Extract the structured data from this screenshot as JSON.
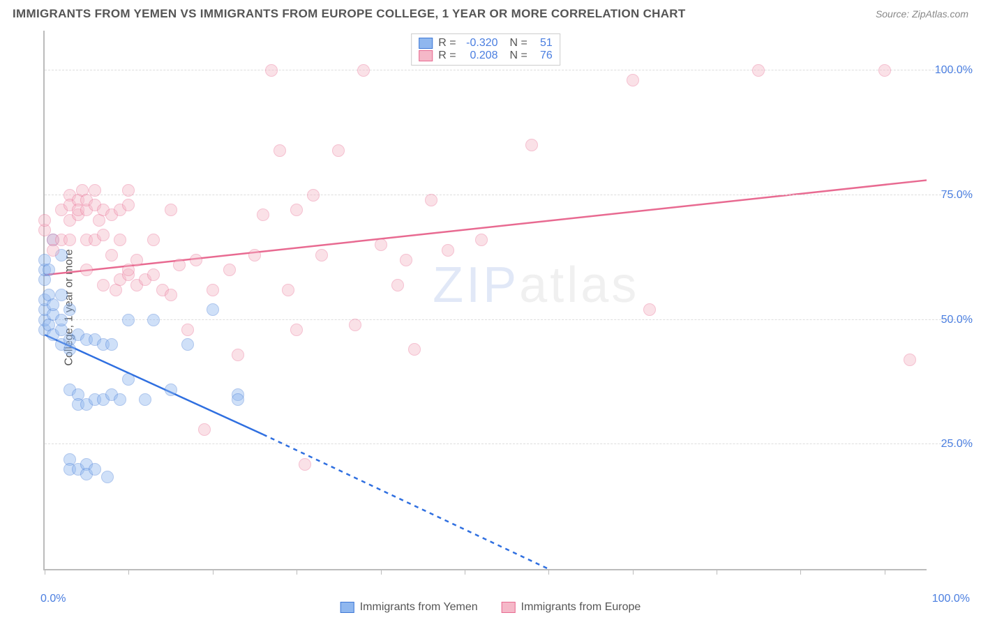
{
  "title": "IMMIGRANTS FROM YEMEN VS IMMIGRANTS FROM EUROPE COLLEGE, 1 YEAR OR MORE CORRELATION CHART",
  "source_label": "Source: ",
  "source_site": "ZipAtlas.com",
  "ylabel": "College, 1 year or more",
  "watermark_a": "ZIP",
  "watermark_b": "atlas",
  "chart": {
    "type": "scatter-with-regression",
    "background_color": "#ffffff",
    "axis_color": "#bbbbbb",
    "grid_color": "#dddddd",
    "tick_label_color": "#4a7ee0",
    "xlim": [
      0,
      105
    ],
    "ylim": [
      0,
      108
    ],
    "xticks": [
      0,
      10,
      20,
      30,
      40,
      50,
      60,
      70,
      80,
      90,
      100
    ],
    "x_labels": [
      {
        "v": 0,
        "t": "0.0%"
      },
      {
        "v": 100,
        "t": "100.0%"
      }
    ],
    "yticks": [
      {
        "v": 25,
        "t": "25.0%"
      },
      {
        "v": 50,
        "t": "50.0%"
      },
      {
        "v": 75,
        "t": "75.0%"
      },
      {
        "v": 100,
        "t": "100.0%"
      }
    ],
    "point_radius": 9,
    "point_opacity": 0.42,
    "series": [
      {
        "name": "Immigrants from Yemen",
        "color_fill": "#8fb7ef",
        "color_stroke": "#3f78d6",
        "line_color": "#2f6fe0",
        "R": "-0.320",
        "N": "51",
        "reg_solid": {
          "x1": 0,
          "y1": 47,
          "x2": 26,
          "y2": 27
        },
        "reg_dash": {
          "x1": 26,
          "y1": 27,
          "x2": 60,
          "y2": 0
        },
        "points": [
          [
            0,
            48
          ],
          [
            0,
            50
          ],
          [
            0,
            52
          ],
          [
            0,
            54
          ],
          [
            0,
            58
          ],
          [
            0,
            60
          ],
          [
            0,
            62
          ],
          [
            0.5,
            60
          ],
          [
            0.5,
            55
          ],
          [
            0.5,
            49
          ],
          [
            1,
            66
          ],
          [
            1,
            47
          ],
          [
            1,
            51
          ],
          [
            1,
            53
          ],
          [
            2,
            48
          ],
          [
            2,
            45
          ],
          [
            2,
            50
          ],
          [
            2,
            55
          ],
          [
            2,
            63
          ],
          [
            3,
            46
          ],
          [
            3,
            44
          ],
          [
            3,
            52
          ],
          [
            3,
            36
          ],
          [
            3,
            22
          ],
          [
            3,
            20
          ],
          [
            4,
            47
          ],
          [
            4,
            35
          ],
          [
            4,
            33
          ],
          [
            4,
            20
          ],
          [
            5,
            46
          ],
          [
            5,
            33
          ],
          [
            5,
            21
          ],
          [
            5,
            19
          ],
          [
            6,
            46
          ],
          [
            6,
            34
          ],
          [
            6,
            20
          ],
          [
            7,
            45
          ],
          [
            7,
            34
          ],
          [
            7.5,
            18.5
          ],
          [
            8,
            45
          ],
          [
            8,
            35
          ],
          [
            9,
            34
          ],
          [
            10,
            38
          ],
          [
            10,
            50
          ],
          [
            12,
            34
          ],
          [
            13,
            50
          ],
          [
            15,
            36
          ],
          [
            17,
            45
          ],
          [
            20,
            52
          ],
          [
            23,
            35
          ],
          [
            23,
            34
          ]
        ]
      },
      {
        "name": "Immigrants from Europe",
        "color_fill": "#f5b8c8",
        "color_stroke": "#e86a91",
        "line_color": "#e86a91",
        "R": "0.208",
        "N": "76",
        "reg_solid": {
          "x1": 0,
          "y1": 59,
          "x2": 105,
          "y2": 78
        },
        "reg_dash": null,
        "points": [
          [
            0,
            68
          ],
          [
            0,
            70
          ],
          [
            1,
            66
          ],
          [
            1,
            64
          ],
          [
            2,
            72
          ],
          [
            2,
            66
          ],
          [
            3,
            75
          ],
          [
            3,
            73
          ],
          [
            3,
            70
          ],
          [
            3,
            66
          ],
          [
            4,
            74
          ],
          [
            4,
            71
          ],
          [
            4,
            72
          ],
          [
            4.5,
            76
          ],
          [
            5,
            72
          ],
          [
            5,
            74
          ],
          [
            5,
            66
          ],
          [
            5,
            60
          ],
          [
            6,
            73
          ],
          [
            6,
            76
          ],
          [
            6,
            66
          ],
          [
            6.5,
            70
          ],
          [
            7,
            72
          ],
          [
            7,
            67
          ],
          [
            7,
            57
          ],
          [
            8,
            63
          ],
          [
            8,
            71
          ],
          [
            8.5,
            56
          ],
          [
            9,
            72
          ],
          [
            9,
            66
          ],
          [
            9,
            58
          ],
          [
            10,
            59
          ],
          [
            10,
            60
          ],
          [
            10,
            73
          ],
          [
            10,
            76
          ],
          [
            11,
            57
          ],
          [
            11,
            62
          ],
          [
            12,
            58
          ],
          [
            13,
            66
          ],
          [
            13,
            59
          ],
          [
            14,
            56
          ],
          [
            15,
            72
          ],
          [
            15,
            55
          ],
          [
            16,
            61
          ],
          [
            17,
            48
          ],
          [
            18,
            62
          ],
          [
            19,
            28
          ],
          [
            20,
            56
          ],
          [
            22,
            60
          ],
          [
            23,
            43
          ],
          [
            25,
            63
          ],
          [
            26,
            71
          ],
          [
            27,
            100
          ],
          [
            28,
            84
          ],
          [
            29,
            56
          ],
          [
            30,
            72
          ],
          [
            30,
            48
          ],
          [
            31,
            21
          ],
          [
            32,
            75
          ],
          [
            33,
            63
          ],
          [
            35,
            84
          ],
          [
            37,
            49
          ],
          [
            38,
            100
          ],
          [
            40,
            65
          ],
          [
            42,
            57
          ],
          [
            43,
            62
          ],
          [
            44,
            44
          ],
          [
            46,
            74
          ],
          [
            48,
            64
          ],
          [
            52,
            66
          ],
          [
            58,
            85
          ],
          [
            72,
            52
          ],
          [
            70,
            98
          ],
          [
            85,
            100
          ],
          [
            100,
            100
          ],
          [
            103,
            42
          ]
        ]
      }
    ]
  },
  "legend_top": {
    "r_label": "R",
    "n_label": "N",
    "eq": "="
  },
  "bottom_legend_items": [
    {
      "label": "Immigrants from Yemen",
      "fill": "#8fb7ef",
      "stroke": "#3f78d6"
    },
    {
      "label": "Immigrants from Europe",
      "fill": "#f5b8c8",
      "stroke": "#e86a91"
    }
  ]
}
